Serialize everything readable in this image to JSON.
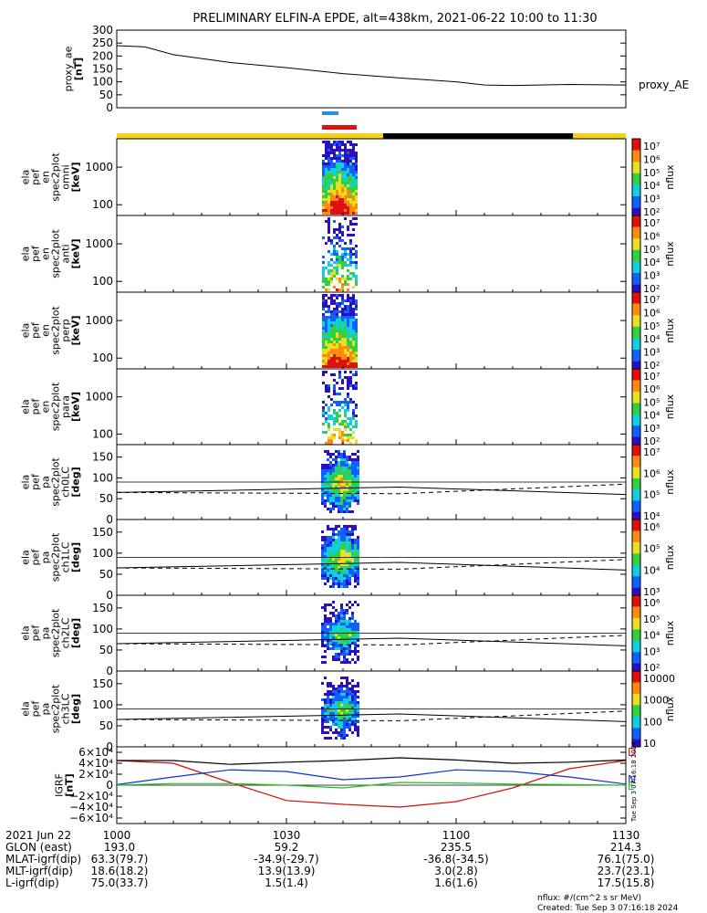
{
  "title": "PRELIMINARY ELFIN-A EPDE, alt=438km, 2021-06-22 10:00 to 11:30",
  "colors": {
    "orbit_day": "#f2d21a",
    "orbit_night": "#000000",
    "blue_marker": "#2a8fe0",
    "red_marker": "#e01010",
    "igrf_d": "#d01010",
    "igrf_n": "#1030d0",
    "igrf_e": "#20c020"
  },
  "chart_data": [
    {
      "type": "line",
      "name": "proxy_ae",
      "ylabel": [
        "proxy_ae",
        "[nT]"
      ],
      "series_label": "proxy_AE",
      "ylim": [
        0,
        300
      ],
      "yticks": [
        "300",
        "250",
        "200",
        "150",
        "100",
        "50",
        "0"
      ],
      "x_minutes": [
        0,
        5,
        10,
        15,
        20,
        30,
        40,
        50,
        60,
        65,
        70,
        80,
        90
      ],
      "values": [
        240,
        235,
        205,
        190,
        175,
        155,
        132,
        115,
        100,
        88,
        86,
        90,
        88
      ]
    },
    {
      "type": "heatmap",
      "name": "spec-omni",
      "ylabel": [
        "ela",
        "pef",
        "en",
        "spec2plot",
        "omni",
        "[keV]"
      ],
      "yticks": [
        "1000",
        "100"
      ],
      "scale": "log",
      "colorbar_label": "nflux",
      "colorbar_ticks": [
        "10⁷",
        "10⁶",
        "10⁵",
        "10⁴",
        "10³",
        "10²"
      ]
    },
    {
      "type": "heatmap",
      "name": "spec-anti",
      "ylabel": [
        "ela",
        "pef",
        "en",
        "spec2plot",
        "anti",
        "[keV]"
      ],
      "yticks": [
        "1000",
        "100"
      ],
      "scale": "log",
      "colorbar_label": "nflux",
      "colorbar_ticks": [
        "10⁷",
        "10⁶",
        "10⁵",
        "10⁴",
        "10³",
        "10²"
      ]
    },
    {
      "type": "heatmap",
      "name": "spec-perp",
      "ylabel": [
        "ela",
        "pef",
        "en",
        "spec2plot",
        "perp",
        "[keV]"
      ],
      "yticks": [
        "1000",
        "100"
      ],
      "scale": "log",
      "colorbar_label": "nflux",
      "colorbar_ticks": [
        "10⁷",
        "10⁶",
        "10⁵",
        "10⁴",
        "10³",
        "10²"
      ]
    },
    {
      "type": "heatmap",
      "name": "spec-para",
      "ylabel": [
        "ela",
        "pef",
        "en",
        "spec2plot",
        "para",
        "[keV]"
      ],
      "yticks": [
        "1000",
        "100"
      ],
      "scale": "log",
      "colorbar_label": "nflux",
      "colorbar_ticks": [
        "10⁷",
        "10⁶",
        "10⁵",
        "10⁴",
        "10³",
        "10²"
      ]
    },
    {
      "type": "heatmap",
      "name": "pa-ch0",
      "ylabel": [
        "ela",
        "pef",
        "pa",
        "spec2plot",
        "ch0LC",
        "[deg]"
      ],
      "yticks": [
        "150",
        "100",
        "50",
        "0"
      ],
      "colorbar_label": "nflux",
      "colorbar_ticks": [
        "10⁷",
        "10⁶",
        "10⁵",
        "10⁴"
      ]
    },
    {
      "type": "heatmap",
      "name": "pa-ch1",
      "ylabel": [
        "ela",
        "pef",
        "pa",
        "spec2plot",
        "ch1LC",
        "[deg]"
      ],
      "yticks": [
        "150",
        "100",
        "50",
        "0"
      ],
      "colorbar_label": "nflux",
      "colorbar_ticks": [
        "10⁶",
        "10⁵",
        "10⁴",
        "10³"
      ]
    },
    {
      "type": "heatmap",
      "name": "pa-ch2",
      "ylabel": [
        "ela",
        "pef",
        "pa",
        "spec2plot",
        "ch2LC",
        "[deg]"
      ],
      "yticks": [
        "150",
        "100",
        "50",
        "0"
      ],
      "colorbar_label": "nflux",
      "colorbar_ticks": [
        "10⁶",
        "10⁵",
        "10⁴",
        "10³",
        "10²"
      ]
    },
    {
      "type": "heatmap",
      "name": "pa-ch3",
      "ylabel": [
        "ela",
        "pef",
        "pa",
        "spec2plot",
        "ch3LC",
        "[deg]"
      ],
      "yticks": [
        "150",
        "100",
        "50",
        "0"
      ],
      "colorbar_label": "nflux",
      "colorbar_ticks": [
        "10000",
        "1000",
        "100",
        "10"
      ]
    },
    {
      "type": "line",
      "name": "igrf",
      "ylabel": [
        "IGRF",
        "[nT]"
      ],
      "yticks": [
        "6×10⁴",
        "4×10⁴",
        "2×10⁴",
        "0",
        "−2×10⁴",
        "−4×10⁴",
        "−6×10⁴"
      ],
      "ylim": [
        -60000,
        60000
      ],
      "x_minutes": [
        0,
        10,
        20,
        30,
        40,
        50,
        60,
        70,
        80,
        90
      ],
      "series": [
        {
          "name": "D",
          "values": [
            45000,
            40000,
            5000,
            -28000,
            -35000,
            -40000,
            -30000,
            -5000,
            30000,
            45000
          ]
        },
        {
          "name": "N",
          "values": [
            1000,
            15000,
            28000,
            25000,
            10000,
            15000,
            28000,
            25000,
            15000,
            2000
          ]
        },
        {
          "name": "E",
          "values": [
            0,
            3000,
            3000,
            0,
            -5000,
            5000,
            4000,
            2000,
            1000,
            0
          ]
        },
        {
          "name": "total",
          "values": [
            45000,
            45000,
            38000,
            42000,
            45000,
            50000,
            46000,
            40000,
            42000,
            46000
          ]
        }
      ],
      "side_label": "Tue Sep  3 07:16:18 2024"
    }
  ],
  "time_axis": {
    "ticks": [
      "1000",
      "1030",
      "1100",
      "1130"
    ],
    "date_label": "2021 Jun 22",
    "rows": [
      {
        "label": "GLON (east)",
        "values": [
          "193.0",
          "59.2",
          "235.5",
          "214.3"
        ]
      },
      {
        "label": "MLAT-igrf(dip)",
        "values": [
          "63.3(79.7)",
          "-34.9(-29.7)",
          "-36.8(-34.5)",
          "76.1(75.0)"
        ]
      },
      {
        "label": "MLT-igrf(dip)",
        "values": [
          "18.6(18.2)",
          "13.9(13.9)",
          "3.0(2.8)",
          "23.7(23.1)"
        ]
      },
      {
        "label": "L-igrf(dip)",
        "values": [
          "75.0(33.7)",
          "1.5(1.4)",
          "1.6(1.6)",
          "17.5(15.8)"
        ]
      }
    ]
  },
  "footer": {
    "units": "nflux: #/(cm^2 s sr MeV)",
    "created": "Created: Tue Sep  3 07:16:18 2024"
  }
}
